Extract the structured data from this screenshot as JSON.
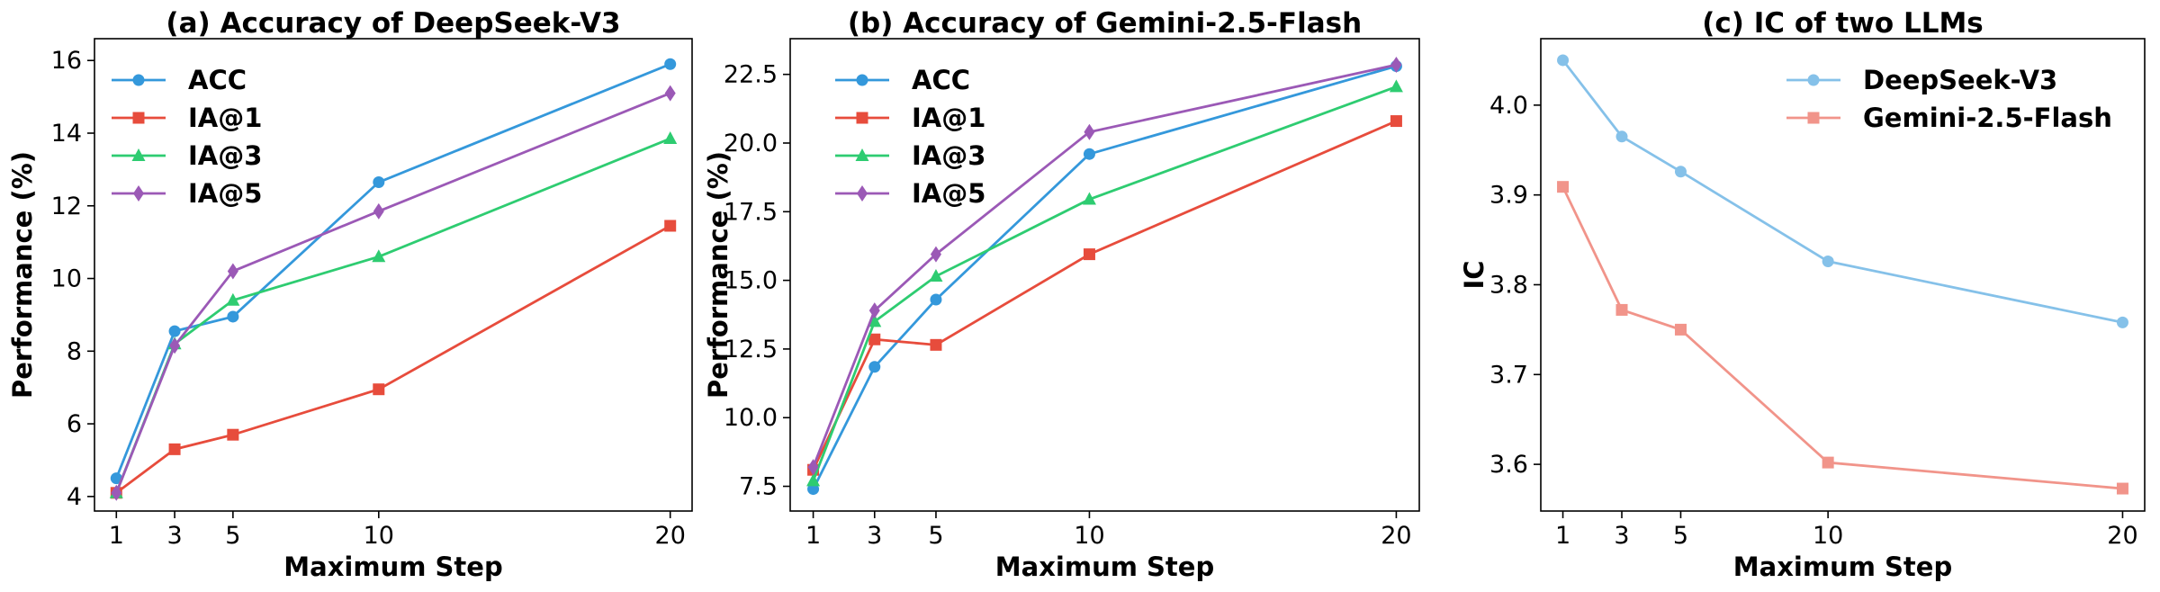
{
  "chart_data": [
    {
      "type": "line",
      "title": "(a) Accuracy of DeepSeek-V3",
      "xlabel": "Maximum Step",
      "ylabel": "Performance (%)",
      "x": [
        1,
        3,
        5,
        10,
        20
      ],
      "xlim": [
        0.25,
        20.75
      ],
      "ylim": [
        3.6,
        16.6
      ],
      "xticks": [
        1,
        3,
        5,
        10,
        20
      ],
      "yticks": [
        4,
        6,
        8,
        10,
        12,
        14,
        16
      ],
      "ytick_labels": [
        "4",
        "6",
        "8",
        "10",
        "12",
        "14",
        "16"
      ],
      "legend_position": "upper-left",
      "grid": false,
      "series": [
        {
          "name": "ACC",
          "color": "#3498db",
          "marker": "circle",
          "values": [
            4.5,
            8.55,
            8.95,
            12.65,
            15.9
          ]
        },
        {
          "name": "IA@1",
          "color": "#e74c3c",
          "marker": "square",
          "values": [
            4.1,
            5.3,
            5.7,
            6.95,
            11.45
          ]
        },
        {
          "name": "IA@3",
          "color": "#2ecc71",
          "marker": "triangle",
          "values": [
            4.1,
            8.2,
            9.4,
            10.6,
            13.85
          ]
        },
        {
          "name": "IA@5",
          "color": "#9b59b6",
          "marker": "diamond",
          "values": [
            4.1,
            8.15,
            10.2,
            11.85,
            15.1
          ]
        }
      ]
    },
    {
      "type": "line",
      "title": "(b) Accuracy of Gemini-2.5-Flash",
      "xlabel": "Maximum Step",
      "ylabel": "Performance (%)",
      "x": [
        1,
        3,
        5,
        10,
        20
      ],
      "xlim": [
        0.25,
        20.75
      ],
      "ylim": [
        6.6,
        23.8
      ],
      "xticks": [
        1,
        3,
        5,
        10,
        20
      ],
      "yticks": [
        7.5,
        10.0,
        12.5,
        15.0,
        17.5,
        20.0,
        22.5
      ],
      "ytick_labels": [
        "7.5",
        "10.0",
        "12.5",
        "15.0",
        "17.5",
        "20.0",
        "22.5"
      ],
      "legend_position": "upper-left",
      "grid": false,
      "series": [
        {
          "name": "ACC",
          "color": "#3498db",
          "marker": "circle",
          "values": [
            7.4,
            11.85,
            14.3,
            19.6,
            22.8
          ]
        },
        {
          "name": "IA@1",
          "color": "#e74c3c",
          "marker": "square",
          "values": [
            8.1,
            12.85,
            12.65,
            15.95,
            20.8
          ]
        },
        {
          "name": "IA@3",
          "color": "#2ecc71",
          "marker": "triangle",
          "values": [
            7.7,
            13.5,
            15.15,
            17.95,
            22.05
          ]
        },
        {
          "name": "IA@5",
          "color": "#9b59b6",
          "marker": "diamond",
          "values": [
            8.2,
            13.9,
            15.95,
            20.4,
            22.85
          ]
        }
      ]
    },
    {
      "type": "line",
      "title": "(c) IC of two LLMs",
      "xlabel": "Maximum Step",
      "ylabel": "IC",
      "x": [
        1,
        3,
        5,
        10,
        20
      ],
      "xlim": [
        0.25,
        20.75
      ],
      "ylim": [
        3.548,
        4.074
      ],
      "xticks": [
        1,
        3,
        5,
        10,
        20
      ],
      "yticks": [
        3.6,
        3.7,
        3.8,
        3.9,
        4.0
      ],
      "ytick_labels": [
        "3.6",
        "3.7",
        "3.8",
        "3.9",
        "4.0"
      ],
      "legend_position": "upper-right",
      "grid": false,
      "series": [
        {
          "name": "DeepSeek-V3",
          "color": "#85c1e9",
          "marker": "circle",
          "values": [
            4.05,
            3.965,
            3.926,
            3.826,
            3.758
          ]
        },
        {
          "name": "Gemini-2.5-Flash",
          "color": "#f1948a",
          "marker": "square",
          "values": [
            3.909,
            3.772,
            3.75,
            3.602,
            3.573
          ]
        }
      ]
    }
  ]
}
